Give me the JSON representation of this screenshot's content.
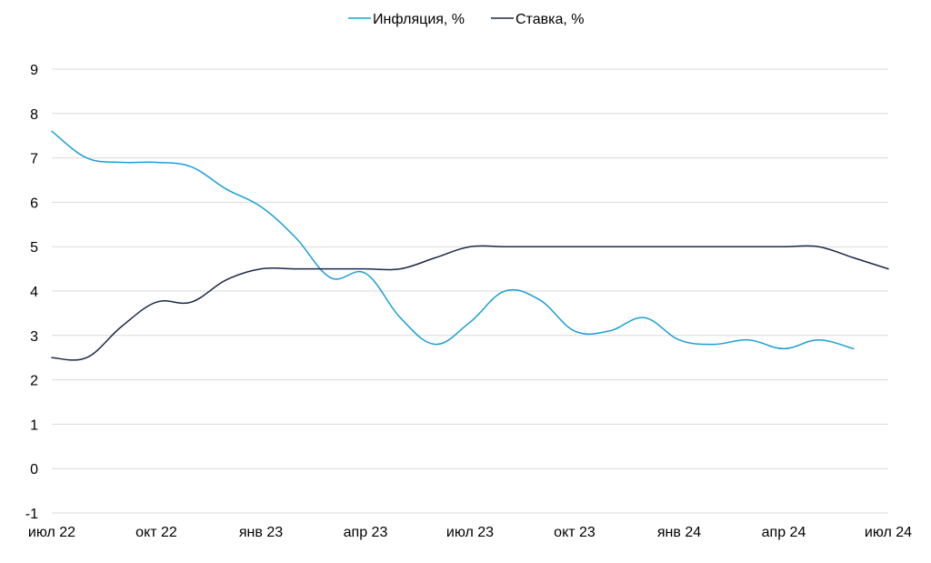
{
  "chart_data": {
    "type": "line",
    "title": "",
    "xlabel": "",
    "ylabel": "",
    "ylim": [
      -1,
      9
    ],
    "y_ticks": [
      "-1",
      "0",
      "1",
      "2",
      "3",
      "4",
      "5",
      "6",
      "7",
      "8",
      "9"
    ],
    "x_ticks": [
      "июл 22",
      "окт 22",
      "янв 23",
      "апр 23",
      "июл 23",
      "окт 23",
      "янв 24",
      "апр 24",
      "июл 24"
    ],
    "grid": "horizontal",
    "legend_position": "top-center",
    "categories": [
      "2022-07",
      "2022-08",
      "2022-09",
      "2022-10",
      "2022-11",
      "2022-12",
      "2023-01",
      "2023-02",
      "2023-03",
      "2023-04",
      "2023-05",
      "2023-06",
      "2023-07",
      "2023-08",
      "2023-09",
      "2023-10",
      "2023-11",
      "2023-12",
      "2024-01",
      "2024-02",
      "2024-03",
      "2024-04",
      "2024-05",
      "2024-06",
      "2024-07"
    ],
    "series": [
      {
        "name": "Инфляция, %",
        "color": "#1a9fd5",
        "values": [
          7.6,
          7.0,
          6.9,
          6.9,
          6.8,
          6.3,
          5.9,
          5.2,
          4.3,
          4.4,
          3.4,
          2.8,
          3.3,
          4.0,
          3.8,
          3.1,
          3.1,
          3.4,
          2.9,
          2.8,
          2.9,
          2.7,
          2.9,
          2.7,
          null
        ]
      },
      {
        "name": "Ставка, %",
        "color": "#1b2847",
        "values": [
          2.5,
          2.5,
          3.2,
          3.75,
          3.75,
          4.25,
          4.5,
          4.5,
          4.5,
          4.5,
          4.5,
          4.75,
          5.0,
          5.0,
          5.0,
          5.0,
          5.0,
          5.0,
          5.0,
          5.0,
          5.0,
          5.0,
          5.0,
          4.75,
          4.5
        ]
      }
    ]
  }
}
